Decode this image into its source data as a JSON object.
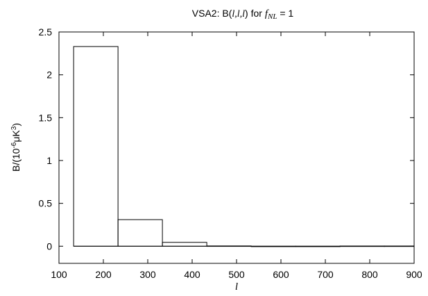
{
  "chart_data": {
    "type": "bar",
    "title_prefix": "VSA2: B(",
    "title_lll": "l,l,l",
    "title_mid": ") for ",
    "title_f": "f",
    "title_sub": "NL",
    "title_suffix": " = 1",
    "ylabel_prefix": "B/(10",
    "ylabel_exp1": "-6",
    "ylabel_mu": "μK",
    "ylabel_exp2": "3",
    "ylabel_suffix": ")",
    "xlabel": "l",
    "xlim": [
      100,
      900
    ],
    "ylim": [
      -0.2,
      2.5
    ],
    "xticks": [
      100,
      200,
      300,
      400,
      500,
      600,
      700,
      800,
      900
    ],
    "yticks": [
      0,
      0.5,
      1,
      1.5,
      2,
      2.5
    ],
    "ytick_labels": [
      "0",
      "0.5",
      "1",
      "1.5",
      "2",
      "2.5"
    ],
    "grid": false,
    "bins": [
      {
        "x0": 133,
        "x1": 233,
        "value": 2.33
      },
      {
        "x0": 233,
        "x1": 333,
        "value": 0.31
      },
      {
        "x0": 333,
        "x1": 433,
        "value": 0.045
      },
      {
        "x0": 433,
        "x1": 533,
        "value": 0.003
      },
      {
        "x0": 533,
        "x1": 633,
        "value": -0.004
      },
      {
        "x0": 633,
        "x1": 733,
        "value": 0.0
      },
      {
        "x0": 733,
        "x1": 833,
        "value": 0.002
      },
      {
        "x0": 833,
        "x1": 900,
        "value": 0.002
      }
    ]
  }
}
